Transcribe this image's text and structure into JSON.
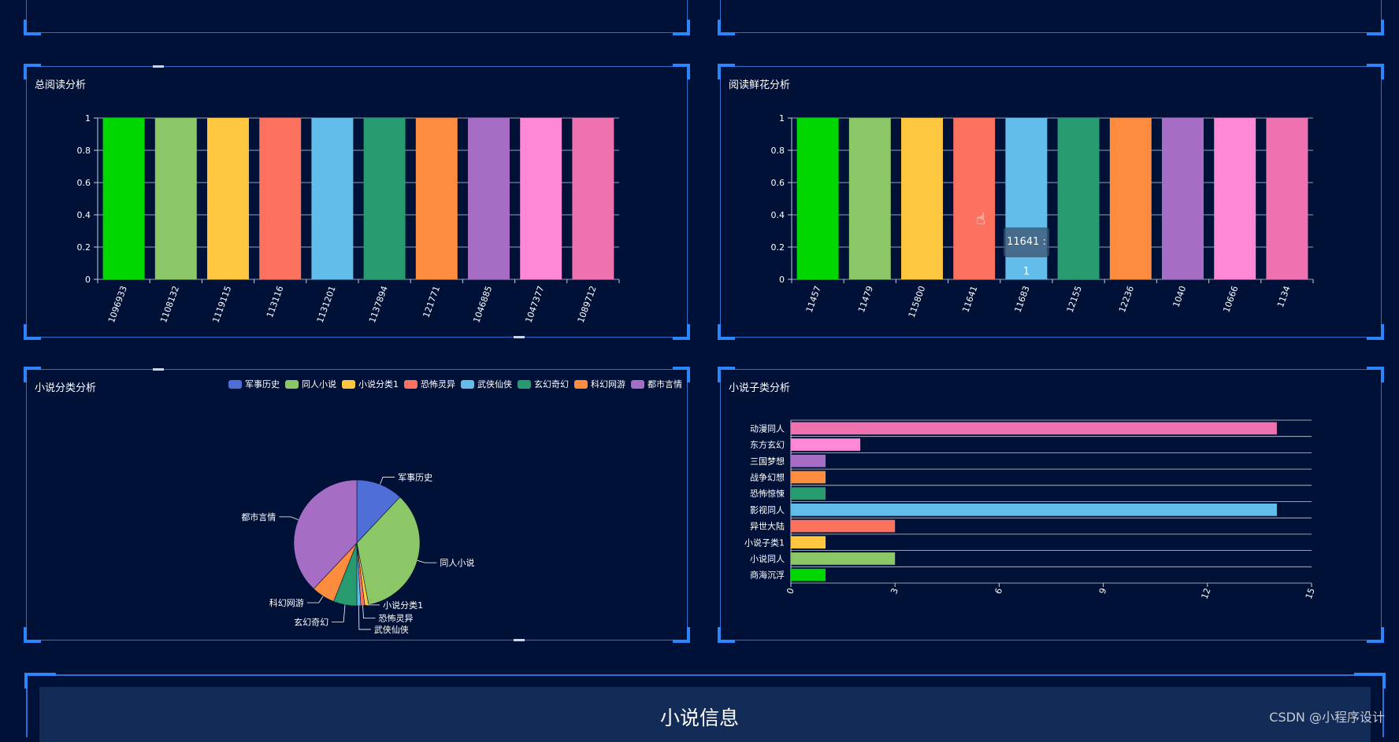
{
  "panels": {
    "total_reading": {
      "title": "总阅读分析"
    },
    "flower_reading": {
      "title": "阅读鲜花分析"
    },
    "category": {
      "title": "小说分类分析"
    },
    "subcategory": {
      "title": "小说子类分析"
    }
  },
  "chart_data": [
    {
      "type": "bar",
      "title": "总阅读分析",
      "categories": [
        "1096933",
        "1108132",
        "1119115",
        "113116",
        "1131201",
        "1137894",
        "121771",
        "1046885",
        "1047377",
        "1089712"
      ],
      "values": [
        1,
        1,
        1,
        1,
        1,
        1,
        1,
        1,
        1,
        1
      ],
      "ylim": [
        0,
        1
      ],
      "yticks": [
        "0",
        "0.2",
        "0.4",
        "0.6",
        "0.8",
        "1"
      ],
      "colors": [
        "#00d600",
        "#8bc766",
        "#ffc640",
        "#fc725f",
        "#62bdea",
        "#289a70",
        "#fe8c3e",
        "#a66dc5",
        "#ff88d6",
        "#ee72b0"
      ]
    },
    {
      "type": "bar",
      "title": "阅读鲜花分析",
      "categories": [
        "11457",
        "11479",
        "115800",
        "11641",
        "11683",
        "12155",
        "12236",
        "1040",
        "10666",
        "1134"
      ],
      "values": [
        1,
        1,
        1,
        1,
        1,
        1,
        1,
        1,
        1,
        1
      ],
      "ylim": [
        0,
        1
      ],
      "yticks": [
        "0",
        "0.2",
        "0.4",
        "0.6",
        "0.8",
        "1"
      ],
      "colors": [
        "#00d600",
        "#8bc766",
        "#ffc640",
        "#fc725f",
        "#62bdea",
        "#289a70",
        "#fe8c3e",
        "#a66dc5",
        "#ff88d6",
        "#ee72b0"
      ],
      "tooltip": "11641 : 1"
    },
    {
      "type": "pie",
      "title": "小说分类分析",
      "legend_position": "top-right",
      "labels": [
        "军事历史",
        "同人小说",
        "小说分类1",
        "恐怖灵异",
        "武侠仙侠",
        "玄幻奇幻",
        "科幻网游",
        "都市言情"
      ],
      "values": [
        12,
        35,
        1,
        1,
        1,
        6,
        6,
        38
      ],
      "colors": [
        "#4f6fd6",
        "#8bc766",
        "#ffc640",
        "#fc725f",
        "#62bdea",
        "#289a70",
        "#fe8c3e",
        "#a66dc5"
      ]
    },
    {
      "type": "bar",
      "orientation": "horizontal",
      "title": "小说子类分析",
      "categories": [
        "动漫同人",
        "东方玄幻",
        "三国梦想",
        "战争幻想",
        "恐怖惊悚",
        "影视同人",
        "异世大陆",
        "小说子类1",
        "小说同人",
        "商海沉浮"
      ],
      "values": [
        14,
        2,
        1,
        1,
        1,
        14,
        3,
        1,
        3,
        1
      ],
      "xlim": [
        0,
        15
      ],
      "xticks": [
        "0",
        "3",
        "6",
        "9",
        "12",
        "15"
      ],
      "colors": [
        "#ee72b0",
        "#ff88d6",
        "#a66dc5",
        "#fe8c3e",
        "#289a70",
        "#62bdea",
        "#fc725f",
        "#ffc640",
        "#8bc766",
        "#00d600"
      ]
    }
  ],
  "info": {
    "title": "小说信息"
  },
  "watermark": "CSDN @小程序设计"
}
